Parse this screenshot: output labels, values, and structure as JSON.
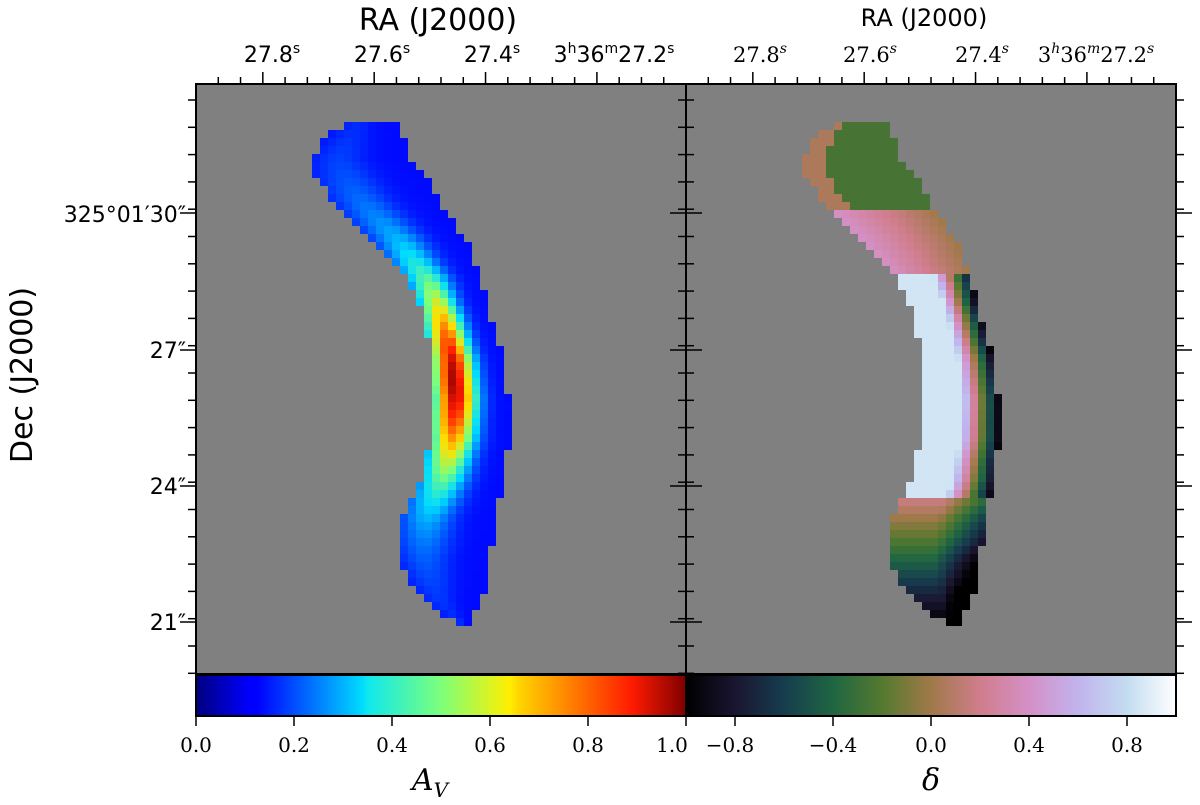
{
  "chart_data": [
    {
      "type": "heatmap",
      "panel": "left",
      "top_axis": {
        "label": "RA (J2000)",
        "ticks": [
          {
            "base": "27.8",
            "sup": "s"
          },
          {
            "base": "27.6",
            "sup": "s"
          },
          {
            "base": "27.4",
            "sup": "s"
          },
          {
            "base": "3",
            "sup": "h",
            "base2": "36",
            "sup2": "m",
            "base3": "27.2",
            "sup3": "s"
          }
        ]
      },
      "left_axis": {
        "label": "Dec (J2000)",
        "ticks": [
          "325°01′30″",
          "27″",
          "24″",
          "21″"
        ],
        "tick_values_arcsec": [
          30,
          27,
          24,
          21
        ]
      },
      "colorbar": {
        "label": "A",
        "label_sub": "V",
        "colormap": "jet",
        "range": [
          0.0,
          1.0
        ],
        "ticks": [
          "0.0",
          "0.2",
          "0.4",
          "0.6",
          "0.8",
          "1.0"
        ]
      },
      "background_color": "#808080",
      "description_values": {
        "min": 0.0,
        "max": 1.0
      }
    },
    {
      "type": "heatmap",
      "panel": "right",
      "top_axis": {
        "label": "RA (J2000)",
        "ticks": [
          {
            "base": "27.8",
            "sup": "s"
          },
          {
            "base": "27.6",
            "sup": "s"
          },
          {
            "base": "27.4",
            "sup": "s"
          },
          {
            "base": "3",
            "sup": "h",
            "base2": "36",
            "sup2": "m",
            "base3": "27.2",
            "sup3": "s"
          }
        ]
      },
      "colorbar": {
        "label": "δ",
        "colormap": "cubehelix",
        "range": [
          -1.0,
          1.0
        ],
        "ticks": [
          "−0.8",
          "−0.4",
          "0.0",
          "0.4",
          "0.8"
        ]
      },
      "background_color": "#808080",
      "description_values": {
        "min": -1.0,
        "max": 1.0
      }
    }
  ]
}
